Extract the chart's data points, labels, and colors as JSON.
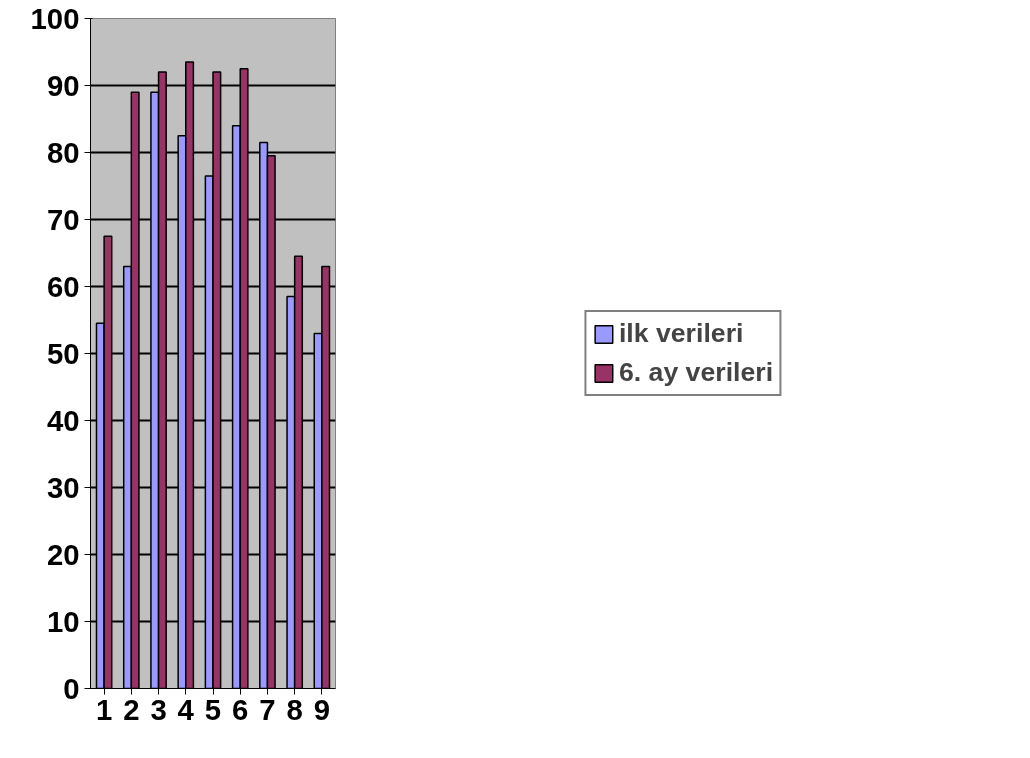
{
  "chart_data": {
    "type": "bar",
    "categories": [
      "1",
      "2",
      "3",
      "4",
      "5",
      "6",
      "7",
      "8",
      "9"
    ],
    "series": [
      {
        "name": "ilk verileri",
        "color": "#9999ff",
        "values": [
          54.5,
          63,
          89,
          82.5,
          76.5,
          84,
          81.5,
          58.5,
          53
        ]
      },
      {
        "name": "6. ay verileri",
        "color": "#993366",
        "values": [
          67.5,
          89,
          92,
          93.5,
          92,
          92.5,
          79.5,
          64.5,
          63
        ]
      }
    ],
    "ylim": [
      0,
      100
    ],
    "yticks": [
      0,
      10,
      20,
      30,
      40,
      50,
      60,
      70,
      80,
      90,
      100
    ],
    "grid": "y",
    "legend": "right"
  }
}
